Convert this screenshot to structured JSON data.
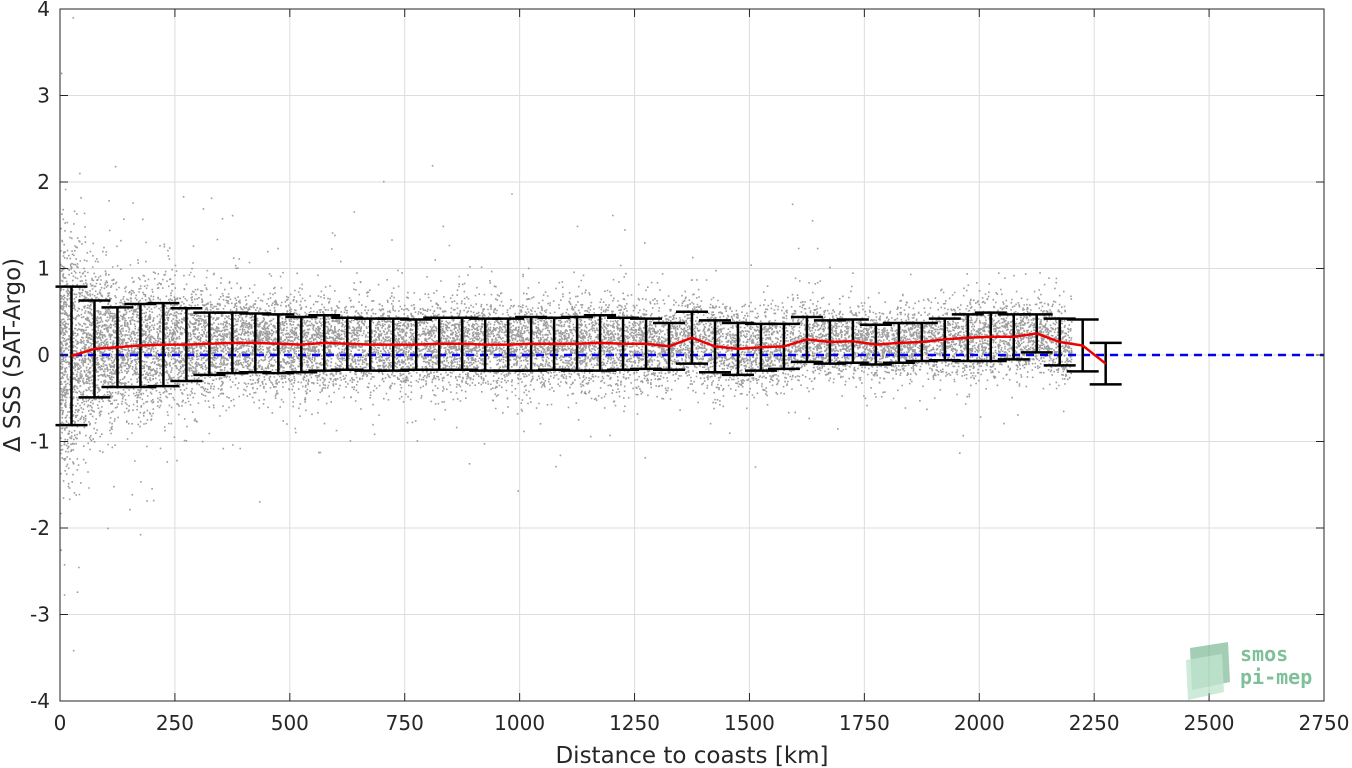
{
  "chart_data": {
    "type": "scatter",
    "xlabel": "Distance to coasts [km]",
    "ylabel": "Δ SSS (SAT-Argo)",
    "xlim": [
      0,
      2750
    ],
    "ylim": [
      -4,
      4
    ],
    "xticks": [
      0,
      250,
      500,
      750,
      1000,
      1250,
      1500,
      1750,
      2000,
      2250,
      2500,
      2750
    ],
    "yticks": [
      -4,
      -3,
      -2,
      -1,
      0,
      1,
      2,
      3,
      4
    ],
    "grid": true,
    "zero_line": {
      "y": 0,
      "style": "dashed",
      "color": "#0000ee"
    },
    "scatter_color": "#8c8c8c",
    "mean_color": "#ee0000",
    "errorbar_color": "#000000",
    "bins": {
      "x": [
        25,
        75,
        125,
        175,
        225,
        275,
        325,
        375,
        425,
        475,
        525,
        575,
        625,
        675,
        725,
        775,
        825,
        875,
        925,
        975,
        1025,
        1075,
        1125,
        1175,
        1225,
        1275,
        1325,
        1375,
        1425,
        1475,
        1525,
        1575,
        1625,
        1675,
        1725,
        1775,
        1825,
        1875,
        1925,
        1975,
        2025,
        2075,
        2125,
        2175,
        2225,
        2275
      ],
      "mean": [
        -0.01,
        0.07,
        0.09,
        0.11,
        0.12,
        0.12,
        0.13,
        0.14,
        0.14,
        0.13,
        0.12,
        0.14,
        0.13,
        0.12,
        0.12,
        0.12,
        0.13,
        0.13,
        0.12,
        0.12,
        0.13,
        0.13,
        0.13,
        0.14,
        0.13,
        0.13,
        0.1,
        0.2,
        0.1,
        0.07,
        0.09,
        0.1,
        0.18,
        0.15,
        0.16,
        0.12,
        0.14,
        0.15,
        0.18,
        0.2,
        0.21,
        0.21,
        0.25,
        0.15,
        0.11,
        -0.1
      ],
      "std": [
        0.8,
        0.56,
        0.46,
        0.48,
        0.48,
        0.42,
        0.36,
        0.35,
        0.34,
        0.34,
        0.32,
        0.32,
        0.3,
        0.3,
        0.3,
        0.29,
        0.3,
        0.3,
        0.3,
        0.3,
        0.31,
        0.3,
        0.31,
        0.32,
        0.3,
        0.29,
        0.27,
        0.3,
        0.3,
        0.3,
        0.27,
        0.26,
        0.26,
        0.25,
        0.25,
        0.23,
        0.23,
        0.22,
        0.24,
        0.27,
        0.28,
        0.26,
        0.22,
        0.27,
        0.3,
        0.24
      ]
    },
    "scatter_seed": 7,
    "scatter_count": 16000
  },
  "logo": {
    "line1": "smos",
    "line2": "pi-mep",
    "color": "#7fbf9a"
  }
}
